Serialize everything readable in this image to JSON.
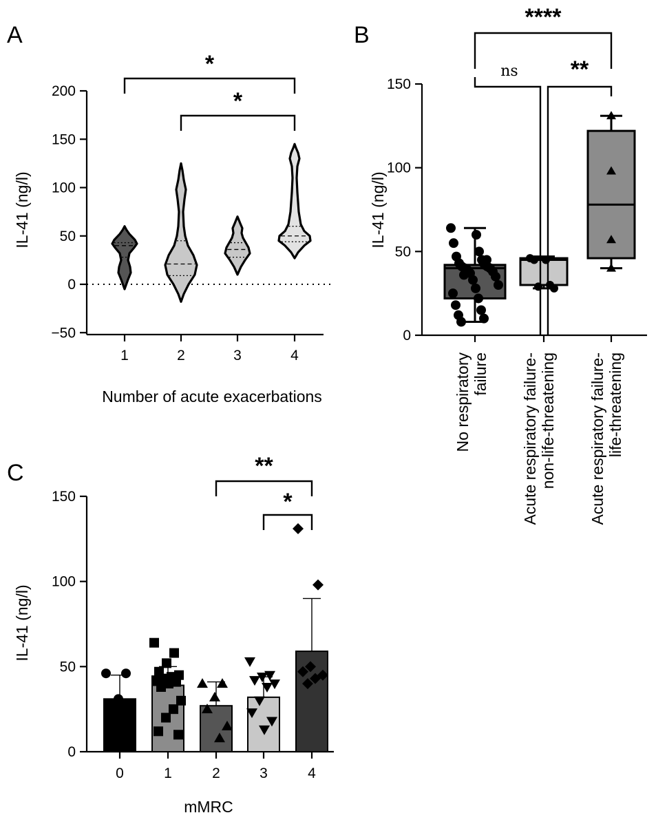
{
  "colors": {
    "black": "#000000",
    "dark": "#555555",
    "mid": "#8c8c8c",
    "light": "#c8c8c8",
    "lighter": "#e2e2e2",
    "darkest": "#333333",
    "white": "#ffffff"
  },
  "panelA": {
    "letter": "A",
    "ylabel": "IL-41 (ng/l)",
    "xlabel": "Number of acute exacerbations",
    "yticks": [
      "200",
      "150",
      "100",
      "50",
      "0",
      "−50"
    ],
    "categories": [
      "1",
      "2",
      "3",
      "4"
    ],
    "annotations": [
      {
        "from": "1",
        "to": "4",
        "label": "*"
      },
      {
        "from": "2",
        "to": "4",
        "label": "*"
      }
    ]
  },
  "panelB": {
    "letter": "B",
    "ylabel": "IL-41 (ng/l)",
    "yticks": [
      "150",
      "100",
      "50",
      "0"
    ],
    "categories": [
      {
        "line1": "No respiratory",
        "line2": "failure"
      },
      {
        "line1": "Acute respiratory failure-",
        "line2": "non-life-threatening"
      },
      {
        "line1": "Acute respiratory failure-",
        "line2": "life-threatening"
      }
    ],
    "annotations": [
      {
        "label": "****"
      },
      {
        "label": "ns"
      },
      {
        "label": "**"
      }
    ]
  },
  "panelC": {
    "letter": "C",
    "ylabel": "IL-41 (ng/l)",
    "xlabel": "mMRC",
    "yticks": [
      "150",
      "100",
      "50",
      "0"
    ],
    "categories": [
      "0",
      "1",
      "2",
      "3",
      "4"
    ],
    "annotations": [
      {
        "from": "2",
        "to": "4",
        "label": "**"
      },
      {
        "from": "3",
        "to": "4",
        "label": "*"
      }
    ]
  },
  "chart_data": [
    {
      "type": "violin",
      "panel": "A",
      "xlabel": "Number of acute exacerbations",
      "ylabel": "IL-41 (ng/l)",
      "ylim": [
        -50,
        200
      ],
      "categories": [
        "1",
        "2",
        "3",
        "4"
      ],
      "quartiles": [
        {
          "q1": 28,
          "median": 40,
          "q3": 43,
          "min": -5,
          "max": 60
        },
        {
          "q1": 9,
          "median": 21,
          "q3": 45,
          "min": -18,
          "max": 125
        },
        {
          "q1": 28,
          "median": 36,
          "q3": 43,
          "min": 10,
          "max": 70
        },
        {
          "q1": 44,
          "median": 50,
          "q3": 60,
          "min": 27,
          "max": 145
        }
      ],
      "reference_line": 0
    },
    {
      "type": "box",
      "panel": "B",
      "ylabel": "IL-41 (ng/l)",
      "ylim": [
        0,
        150
      ],
      "categories": [
        "No respiratory failure",
        "Acute respiratory failure-non-life-threatening",
        "Acute respiratory failure-life-threatening"
      ],
      "boxes": [
        {
          "min": 8,
          "q1": 22,
          "median": 40,
          "q3": 42,
          "max": 64
        },
        {
          "min": 28,
          "q1": 30,
          "median": 45,
          "q3": 46,
          "max": 47
        },
        {
          "min": 40,
          "q1": 46,
          "median": 78,
          "q3": 122,
          "max": 131
        }
      ],
      "points": [
        [
          64,
          60,
          55,
          50,
          47,
          45,
          43,
          42,
          41,
          41,
          40,
          40,
          39,
          38,
          37,
          35,
          33,
          30,
          28,
          25,
          22,
          18,
          15,
          12,
          10,
          8,
          45,
          36
        ],
        [
          46,
          45,
          45,
          30,
          29,
          28
        ],
        [
          131,
          98,
          57,
          40
        ]
      ]
    },
    {
      "type": "bar",
      "panel": "C",
      "xlabel": "mMRC",
      "ylabel": "IL-41 (ng/l)",
      "ylim": [
        0,
        150
      ],
      "categories": [
        "0",
        "1",
        "2",
        "3",
        "4"
      ],
      "values": [
        31,
        39,
        27,
        32,
        59
      ],
      "errors": [
        14,
        11,
        14,
        12,
        31
      ],
      "points": [
        [
          46,
          46,
          31
        ],
        [
          64,
          58,
          52,
          47,
          45,
          44,
          43,
          42,
          41,
          40,
          38,
          30,
          25,
          20,
          12,
          10
        ],
        [
          40,
          40,
          32,
          25,
          15,
          8
        ],
        [
          53,
          45,
          44,
          42,
          40,
          38,
          30,
          23,
          18,
          13
        ],
        [
          131,
          98,
          50,
          47,
          45,
          43,
          40
        ]
      ]
    }
  ]
}
